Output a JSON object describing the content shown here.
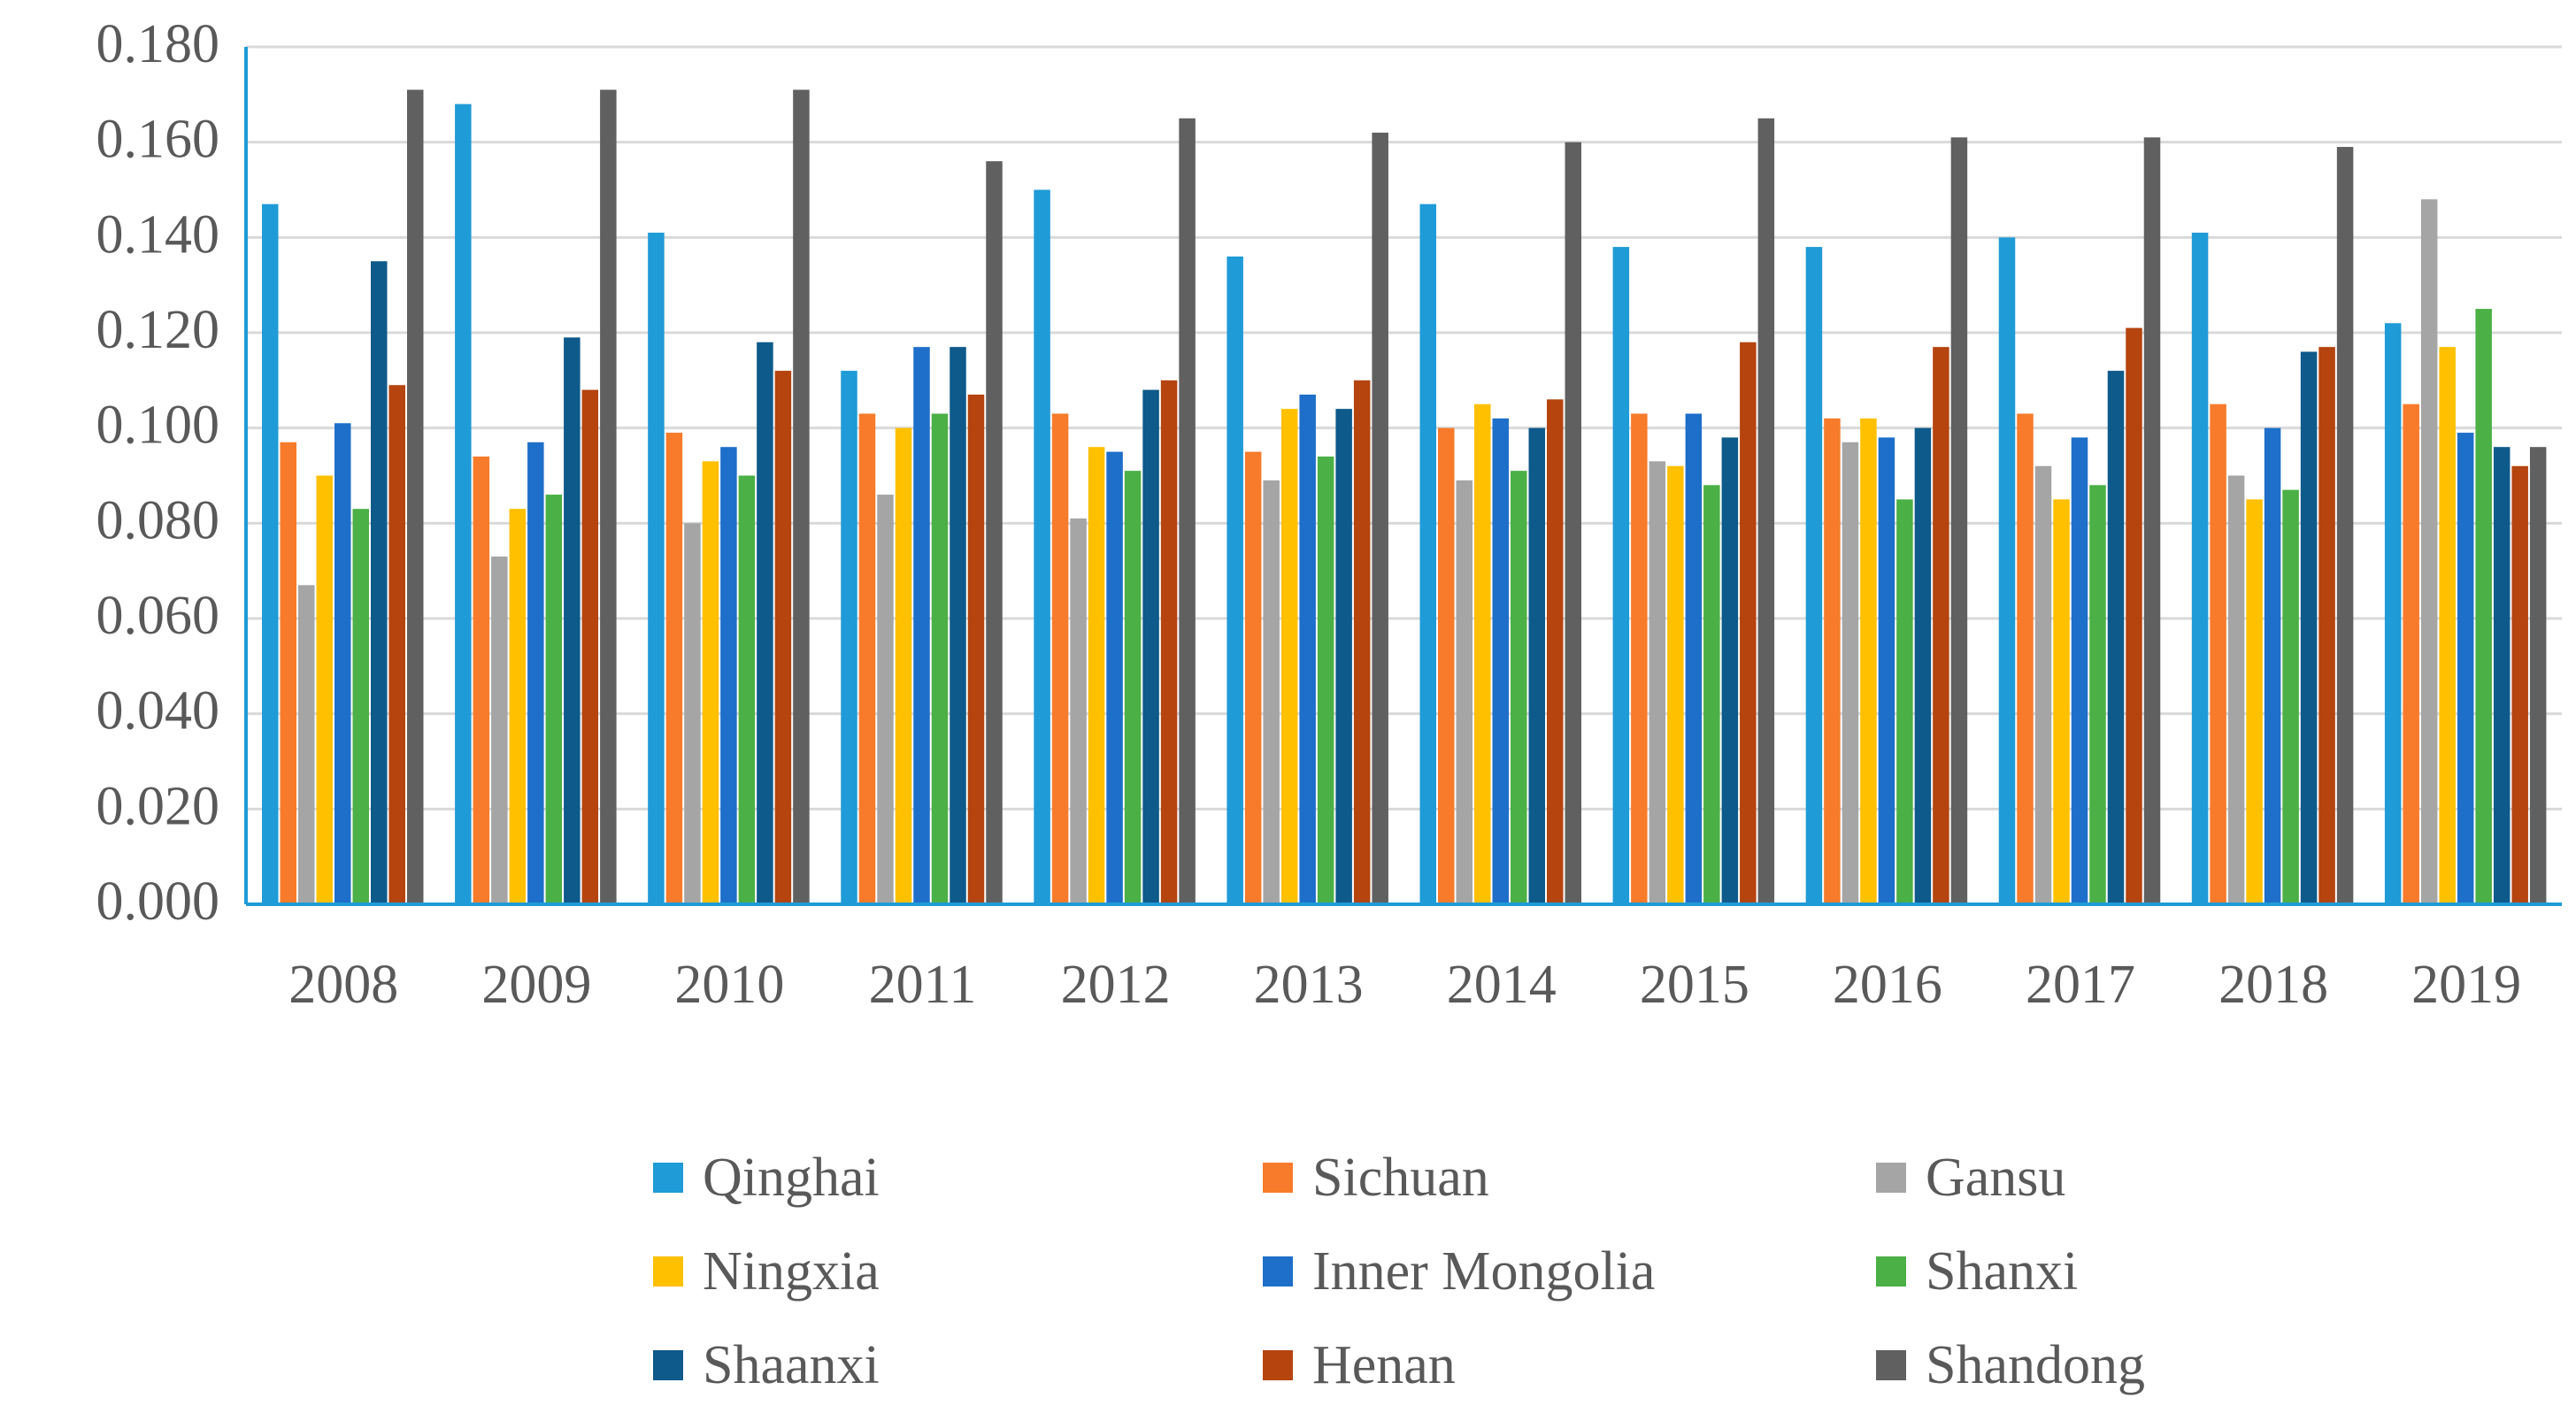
{
  "chart_data": {
    "type": "bar",
    "title": "",
    "xlabel": "",
    "ylabel": "",
    "ylim": [
      0,
      0.18
    ],
    "yticks": [
      "0.000",
      "0.020",
      "0.040",
      "0.060",
      "0.080",
      "0.100",
      "0.120",
      "0.140",
      "0.160",
      "0.180"
    ],
    "grid": true,
    "legend_position": "bottom",
    "categories": [
      "2008",
      "2009",
      "2010",
      "2011",
      "2012",
      "2013",
      "2014",
      "2015",
      "2016",
      "2017",
      "2018",
      "2019"
    ],
    "series": [
      {
        "name": "Qinghai",
        "color": "#1f9bd7",
        "values": [
          0.147,
          0.168,
          0.141,
          0.112,
          0.15,
          0.136,
          0.147,
          0.138,
          0.138,
          0.14,
          0.141,
          0.122
        ]
      },
      {
        "name": "Sichuan",
        "color": "#f77b2a",
        "values": [
          0.097,
          0.094,
          0.099,
          0.103,
          0.103,
          0.095,
          0.1,
          0.103,
          0.102,
          0.103,
          0.105,
          0.105
        ]
      },
      {
        "name": "Gansu",
        "color": "#a5a5a5",
        "values": [
          0.067,
          0.073,
          0.08,
          0.086,
          0.081,
          0.089,
          0.089,
          0.093,
          0.097,
          0.092,
          0.09,
          0.148
        ]
      },
      {
        "name": "Ningxia",
        "color": "#ffc000",
        "values": [
          0.09,
          0.083,
          0.093,
          0.1,
          0.096,
          0.104,
          0.105,
          0.092,
          0.102,
          0.085,
          0.085,
          0.117
        ]
      },
      {
        "name": "Inner Mongolia",
        "color": "#1e6fc9",
        "values": [
          0.101,
          0.097,
          0.096,
          0.117,
          0.095,
          0.107,
          0.102,
          0.103,
          0.098,
          0.098,
          0.1,
          0.099
        ]
      },
      {
        "name": "Shanxi",
        "color": "#4bb046",
        "values": [
          0.083,
          0.086,
          0.09,
          0.103,
          0.091,
          0.094,
          0.091,
          0.088,
          0.085,
          0.088,
          0.087,
          0.125
        ]
      },
      {
        "name": "Shaanxi",
        "color": "#0e5a8a",
        "values": [
          0.135,
          0.119,
          0.118,
          0.117,
          0.108,
          0.104,
          0.1,
          0.098,
          0.1,
          0.112,
          0.116,
          0.096
        ]
      },
      {
        "name": "Henan",
        "color": "#b5440f",
        "values": [
          0.109,
          0.108,
          0.112,
          0.107,
          0.11,
          0.11,
          0.106,
          0.118,
          0.117,
          0.121,
          0.117,
          0.092
        ]
      },
      {
        "name": "Shandong",
        "color": "#606060",
        "values": [
          0.171,
          0.171,
          0.171,
          0.156,
          0.165,
          0.162,
          0.16,
          0.165,
          0.161,
          0.161,
          0.159,
          0.096
        ]
      }
    ]
  }
}
